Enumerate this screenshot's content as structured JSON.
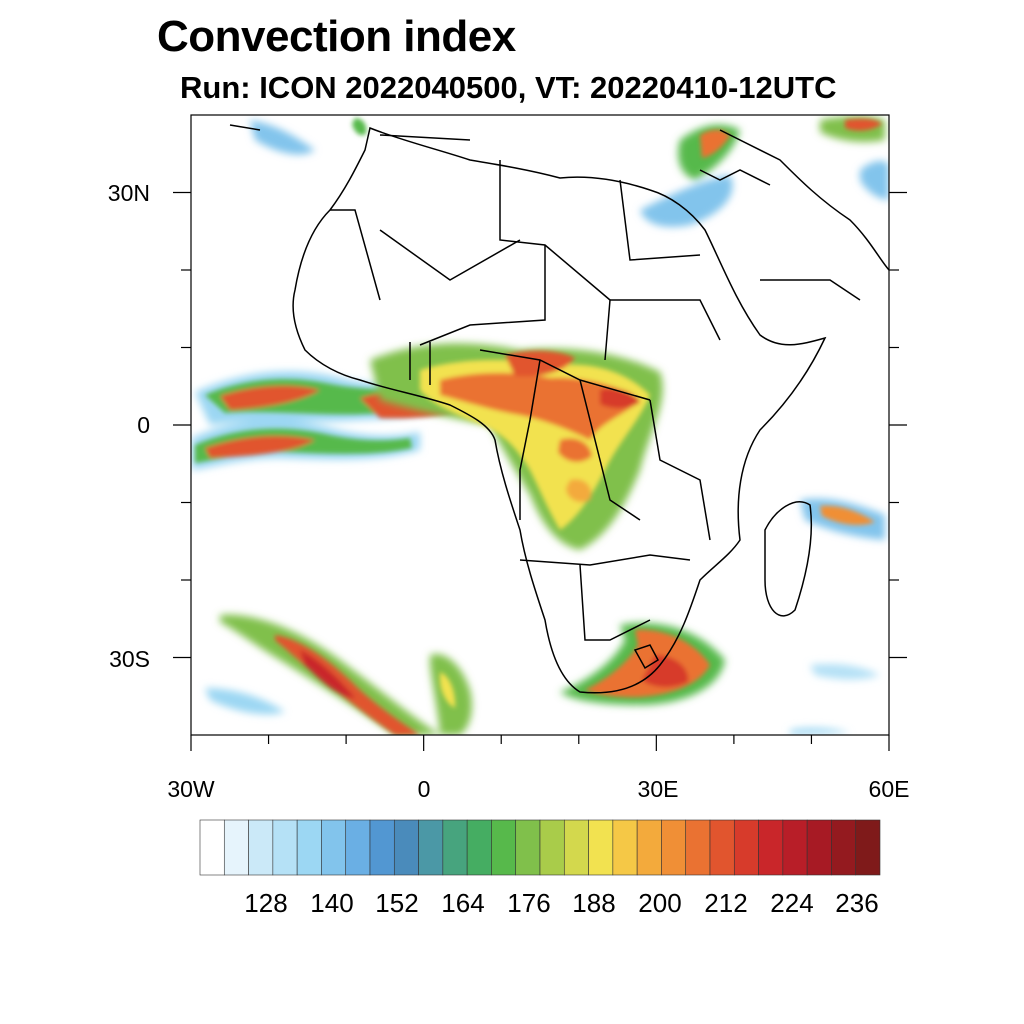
{
  "header": {
    "title": "Convection index",
    "subtitle": "Run: ICON 2022040500,  VT: 20220410-12UTC"
  },
  "map": {
    "lat_labels": [
      "30N",
      "0",
      "30S"
    ],
    "lon_labels": [
      "30W",
      "0",
      "30E",
      "60E"
    ],
    "extent": {
      "lon_min": -30,
      "lon_max": 60,
      "lat_min": -40,
      "lat_max": 40
    }
  },
  "colorbar": {
    "labels": [
      "128",
      "140",
      "152",
      "164",
      "176",
      "188",
      "200",
      "212",
      "224",
      "236"
    ],
    "colors": [
      "#ffffff",
      "#e6f4fc",
      "#cbe9f8",
      "#b5e1f6",
      "#9cd7f3",
      "#82c4ec",
      "#6aafe4",
      "#5297d2",
      "#4a8bbb",
      "#4b98a6",
      "#47a47e",
      "#45ad62",
      "#57b94b",
      "#80c04b",
      "#a9cc4a",
      "#d3d84d",
      "#f2e250",
      "#f5c846",
      "#f3aa3c",
      "#f08f36",
      "#ea7232",
      "#e1552e",
      "#d73b2b",
      "#c9262a",
      "#b81e28",
      "#a71a24",
      "#941a1f",
      "#7f1a1a"
    ]
  }
}
